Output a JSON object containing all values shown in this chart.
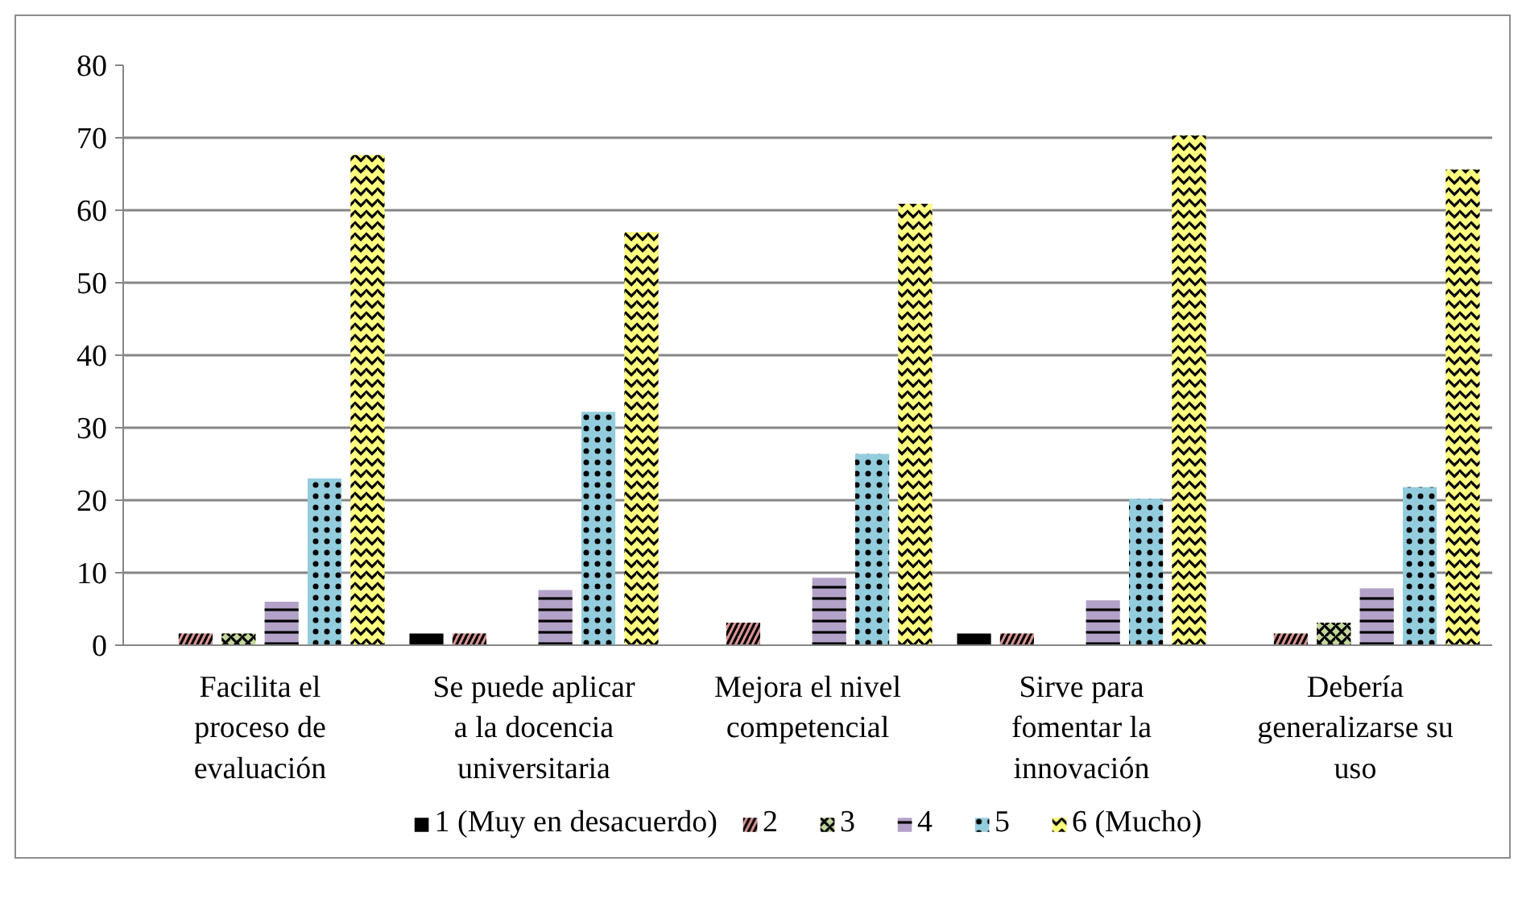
{
  "chart_data": {
    "type": "bar",
    "categories": [
      "Facilita el proceso de evaluación",
      "Se puede aplicar a la docencia universitaria",
      "Mejora el nivel competencial",
      "Sirve para fomentar la innovación",
      "Debería generalizarse su uso"
    ],
    "series": [
      {
        "name": "1 (Muy en desacuerdo)",
        "color": "#000000",
        "values": [
          0,
          1.6,
          0,
          1.6,
          0
        ]
      },
      {
        "name": "2",
        "color": "#d99694",
        "values": [
          1.6,
          1.6,
          3.1,
          1.6,
          1.6
        ]
      },
      {
        "name": "3",
        "color": "#c3d69b",
        "values": [
          1.6,
          0,
          0,
          0,
          3.1
        ]
      },
      {
        "name": "4",
        "color": "#b3a2c7",
        "values": [
          6.0,
          7.6,
          9.3,
          6.2,
          7.8
        ]
      },
      {
        "name": "5",
        "color": "#93cddd",
        "values": [
          23.0,
          32.2,
          26.4,
          20.2,
          21.8
        ]
      },
      {
        "name": "6 (Mucho)",
        "color": "#ffff80",
        "values": [
          67.6,
          57.0,
          60.9,
          70.3,
          65.6
        ]
      }
    ],
    "ylim": [
      0,
      80
    ],
    "yticks": [
      0,
      10,
      20,
      30,
      40,
      50,
      60,
      70,
      80
    ],
    "grid": "y",
    "legend": "bottom"
  }
}
